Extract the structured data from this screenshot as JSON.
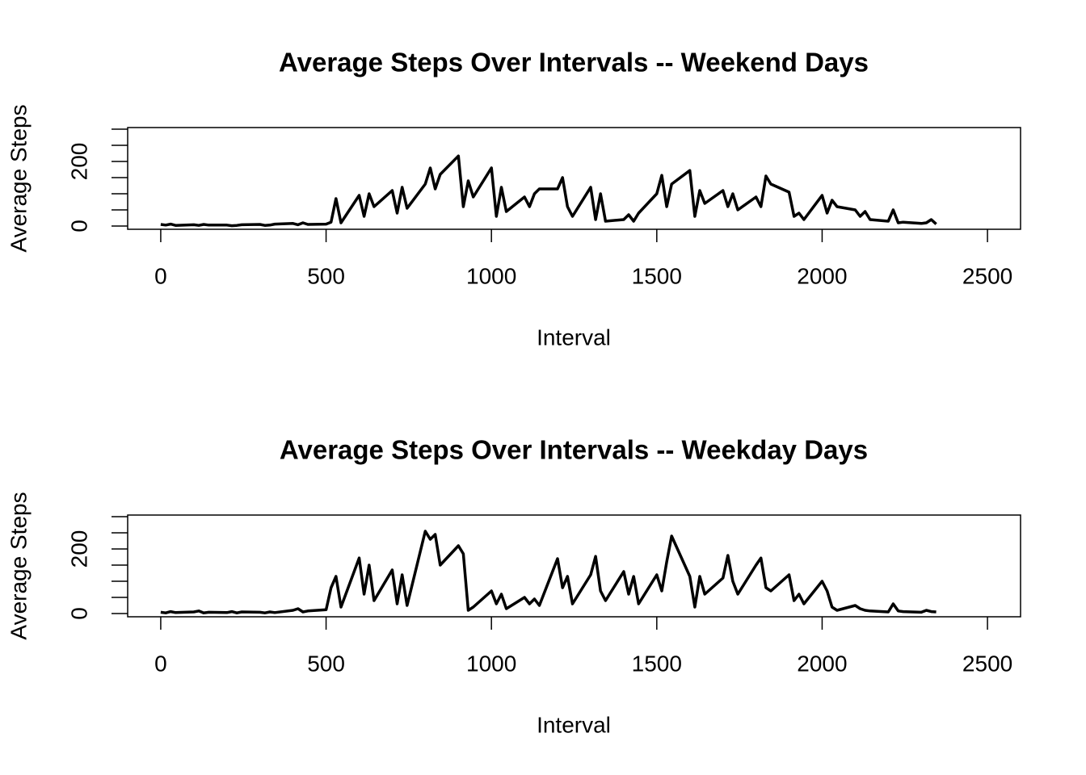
{
  "chart_data": [
    {
      "type": "line",
      "title": "Average Steps Over Intervals -- Weekend Days",
      "x_label": "Interval",
      "y_label": "Average Steps",
      "xlim": [
        -100,
        2600
      ],
      "xticks": [
        0,
        500,
        1000,
        1500,
        2000,
        2500
      ],
      "ylim": [
        -10,
        305
      ],
      "yticks": [
        0,
        50,
        100,
        150,
        200,
        250,
        300
      ],
      "series": [
        {
          "name": "Weekend",
          "color": "#000000",
          "x": [
            0,
            15,
            30,
            45,
            100,
            115,
            130,
            145,
            200,
            215,
            230,
            245,
            300,
            315,
            330,
            345,
            400,
            415,
            430,
            445,
            500,
            515,
            530,
            545,
            600,
            615,
            630,
            645,
            700,
            715,
            730,
            745,
            800,
            815,
            830,
            845,
            900,
            915,
            930,
            945,
            1000,
            1015,
            1030,
            1045,
            1100,
            1115,
            1130,
            1145,
            1200,
            1215,
            1230,
            1245,
            1300,
            1315,
            1330,
            1345,
            1400,
            1415,
            1430,
            1445,
            1500,
            1515,
            1530,
            1545,
            1600,
            1615,
            1630,
            1645,
            1700,
            1715,
            1730,
            1745,
            1800,
            1815,
            1830,
            1845,
            1900,
            1915,
            1930,
            1945,
            2000,
            2015,
            2030,
            2045,
            2100,
            2115,
            2130,
            2145,
            2200,
            2215,
            2230,
            2245,
            2300,
            2315,
            2330,
            2345
          ],
          "values": [
            5,
            3,
            6,
            2,
            4,
            2,
            5,
            3,
            3,
            1,
            2,
            4,
            5,
            2,
            3,
            6,
            8,
            4,
            10,
            5,
            6,
            12,
            85,
            10,
            95,
            30,
            100,
            60,
            110,
            40,
            120,
            55,
            130,
            180,
            115,
            160,
            217,
            60,
            140,
            90,
            180,
            30,
            120,
            45,
            90,
            60,
            100,
            115,
            115,
            150,
            60,
            30,
            120,
            20,
            100,
            15,
            20,
            35,
            15,
            40,
            100,
            157,
            60,
            130,
            172,
            30,
            110,
            70,
            110,
            60,
            100,
            50,
            90,
            60,
            155,
            130,
            105,
            30,
            40,
            20,
            95,
            40,
            80,
            60,
            50,
            30,
            45,
            20,
            15,
            50,
            10,
            12,
            8,
            10,
            20,
            6
          ]
        }
      ]
    },
    {
      "type": "line",
      "title": "Average Steps Over Intervals -- Weekday Days",
      "x_label": "Interval",
      "y_label": "Average Steps",
      "xlim": [
        -100,
        2600
      ],
      "xticks": [
        0,
        500,
        1000,
        1500,
        2000,
        2500
      ],
      "ylim": [
        -10,
        305
      ],
      "yticks": [
        0,
        50,
        100,
        150,
        200,
        250,
        300
      ],
      "series": [
        {
          "name": "Weekday",
          "color": "#000000",
          "x": [
            0,
            15,
            30,
            45,
            100,
            115,
            130,
            145,
            200,
            215,
            230,
            245,
            300,
            315,
            330,
            345,
            400,
            415,
            430,
            445,
            500,
            515,
            530,
            545,
            600,
            615,
            630,
            645,
            700,
            715,
            730,
            745,
            800,
            815,
            830,
            845,
            900,
            915,
            930,
            945,
            1000,
            1015,
            1030,
            1045,
            1100,
            1115,
            1130,
            1145,
            1200,
            1215,
            1230,
            1245,
            1300,
            1315,
            1330,
            1345,
            1400,
            1415,
            1430,
            1445,
            1500,
            1515,
            1530,
            1545,
            1600,
            1615,
            1630,
            1645,
            1700,
            1715,
            1730,
            1745,
            1800,
            1815,
            1830,
            1845,
            1900,
            1915,
            1930,
            1945,
            2000,
            2015,
            2030,
            2045,
            2100,
            2115,
            2130,
            2145,
            2200,
            2215,
            2230,
            2245,
            2300,
            2315,
            2330,
            2345
          ],
          "values": [
            4,
            2,
            6,
            3,
            5,
            8,
            2,
            4,
            3,
            6,
            2,
            5,
            4,
            2,
            5,
            3,
            10,
            15,
            5,
            8,
            12,
            80,
            115,
            20,
            172,
            60,
            150,
            40,
            135,
            30,
            120,
            25,
            255,
            230,
            245,
            150,
            210,
            185,
            10,
            20,
            70,
            30,
            60,
            15,
            50,
            30,
            45,
            25,
            170,
            80,
            115,
            30,
            120,
            177,
            70,
            40,
            130,
            60,
            115,
            30,
            120,
            70,
            160,
            240,
            115,
            20,
            115,
            60,
            110,
            180,
            100,
            60,
            150,
            172,
            80,
            70,
            120,
            40,
            60,
            30,
            100,
            70,
            20,
            10,
            25,
            15,
            10,
            8,
            5,
            30,
            8,
            6,
            4,
            10,
            6,
            5
          ]
        }
      ]
    }
  ]
}
